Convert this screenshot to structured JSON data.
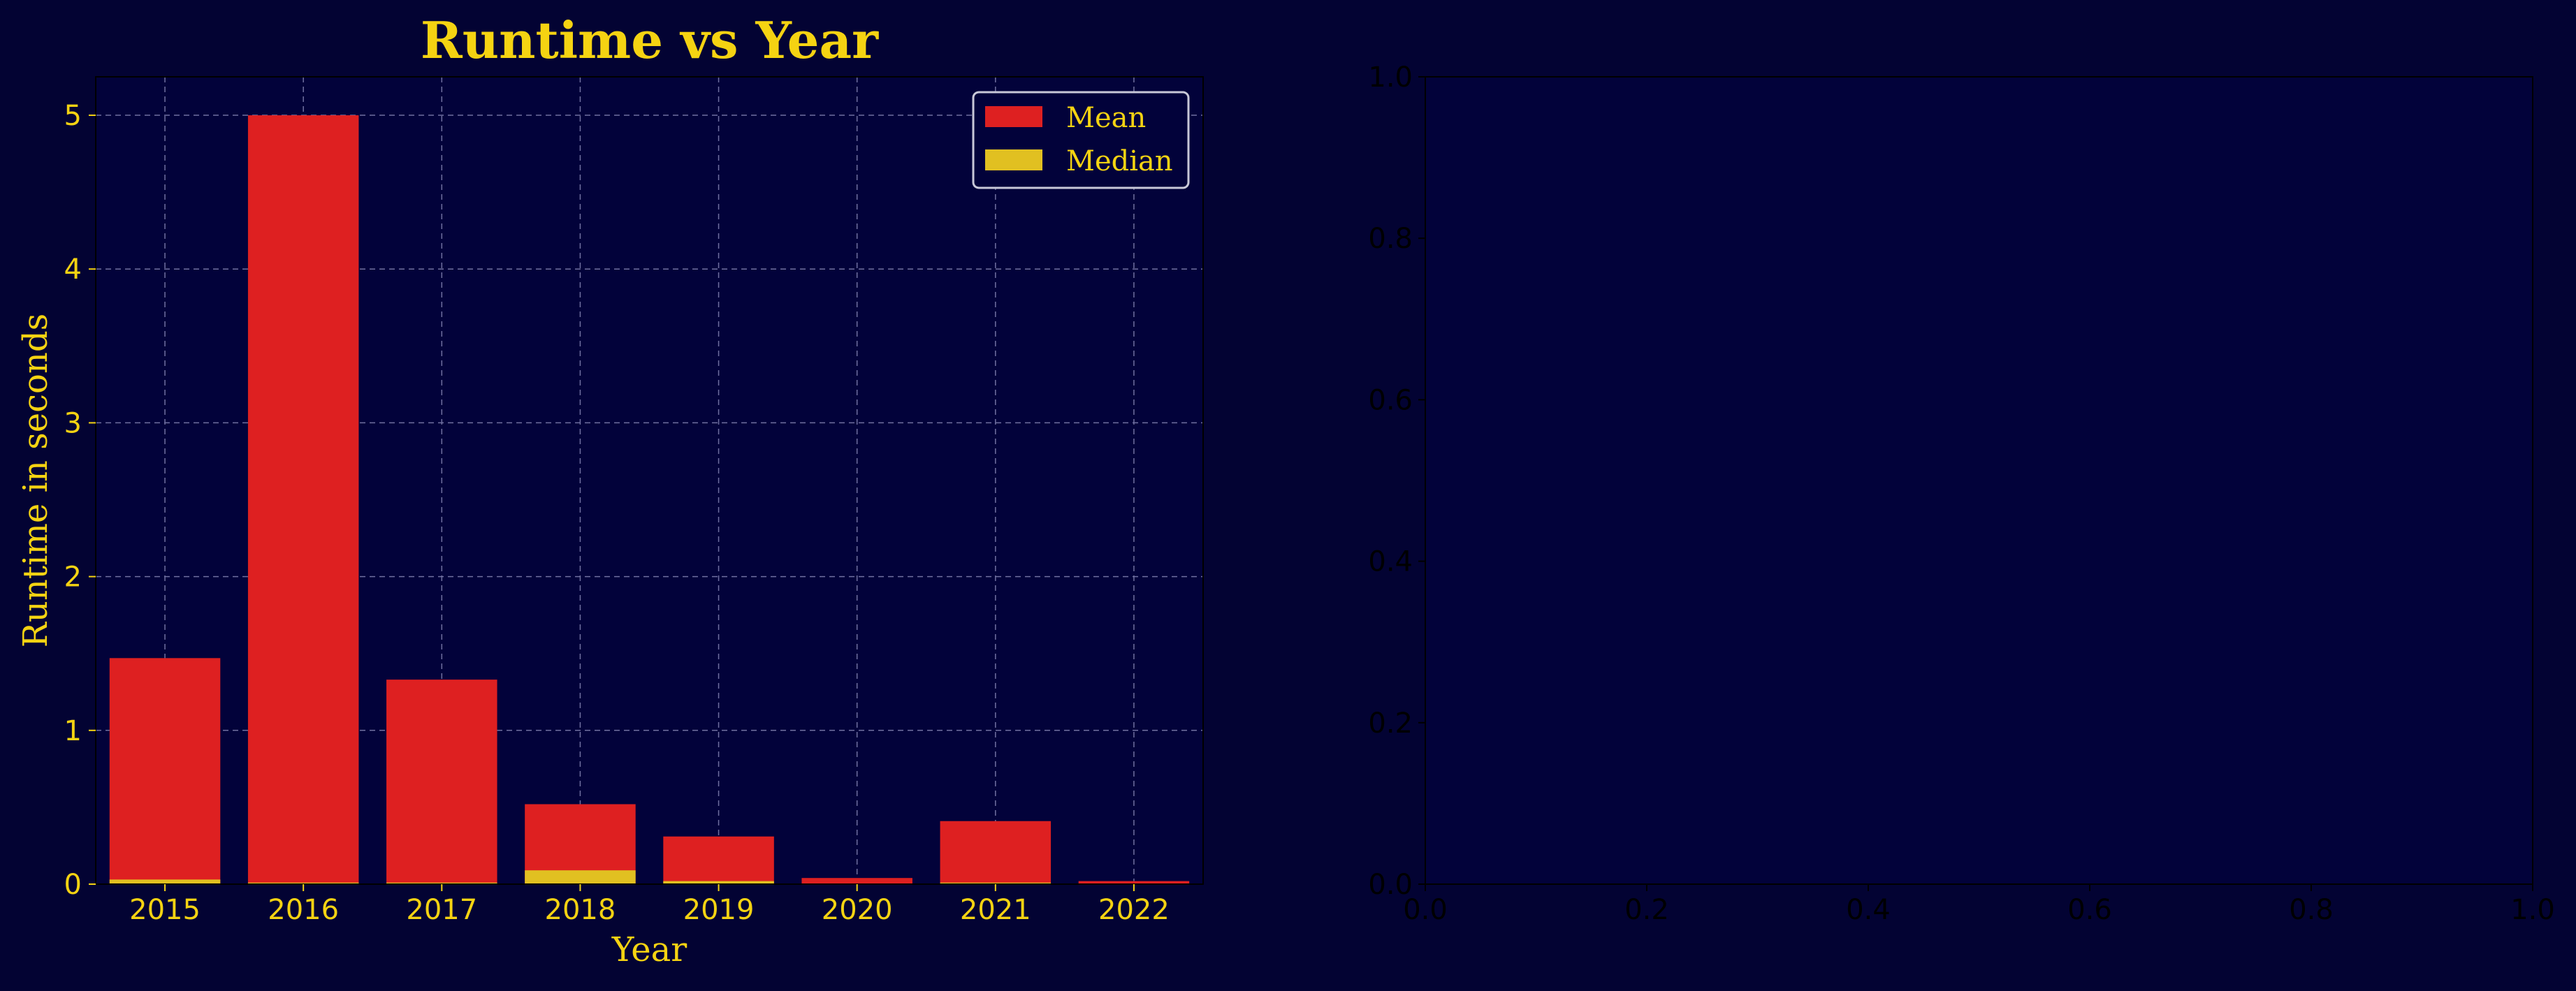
{
  "colors": {
    "figure_bg": "#030333",
    "axes_bg": "#02023a",
    "mean": "#de2021",
    "median": "#e1c021",
    "text_accent": "#f5d312",
    "text_plain": "#000000",
    "grid": "#7070a0",
    "legend_border": "#c8c8d8"
  },
  "chart_data": [
    {
      "type": "bar",
      "title": "Runtime vs Year",
      "xlabel": "Year",
      "ylabel": "Runtime in seconds",
      "categories": [
        "2015",
        "2016",
        "2017",
        "2018",
        "2019",
        "2020",
        "2021",
        "2022"
      ],
      "series": [
        {
          "name": "Mean",
          "values": [
            1.47,
            5.0,
            1.33,
            0.52,
            0.31,
            0.04,
            0.41,
            0.02
          ]
        },
        {
          "name": "Median",
          "values": [
            0.03,
            0.01,
            0.01,
            0.09,
            0.02,
            0.0,
            0.01,
            0.0
          ]
        }
      ],
      "overlaid": true,
      "ylim": [
        0,
        5.25
      ],
      "yticks": [
        0,
        1,
        2,
        3,
        4,
        5
      ],
      "grid": true,
      "legend": {
        "position": "top-right"
      }
    },
    {
      "type": "empty",
      "title": "",
      "xlabel": "",
      "ylabel": "",
      "xlim": [
        0,
        1
      ],
      "ylim": [
        0,
        1
      ],
      "xticks": [
        "0.0",
        "0.2",
        "0.4",
        "0.6",
        "0.8",
        "1.0"
      ],
      "yticks": [
        "0.0",
        "0.2",
        "0.4",
        "0.6",
        "0.8",
        "1.0"
      ]
    }
  ]
}
